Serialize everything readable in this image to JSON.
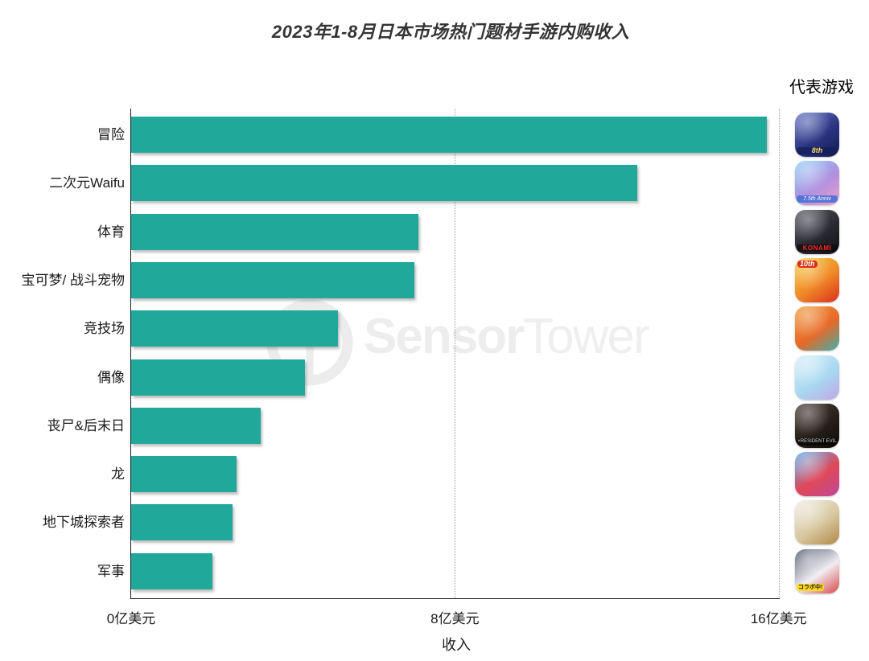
{
  "title": "2023年1-8月日本市场热门题材手游内购收入",
  "watermark": {
    "bold": "Sensor",
    "light": "Tower"
  },
  "right_panel": {
    "header": "代表游戏",
    "games": [
      {
        "category": "冒险",
        "icon": "fate-grand-order-game-icon",
        "colors": [
          "#6a79c8",
          "#2a3580",
          "#141c52"
        ],
        "badge": "8th"
      },
      {
        "category": "二次元Waifu",
        "icon": "uma-musume-game-icon",
        "colors": [
          "#8fd0f8",
          "#b090e0",
          "#f0a0c8"
        ],
        "badge": "7.5th Anniv"
      },
      {
        "category": "体育",
        "icon": "baseball-konami-game-icon",
        "colors": [
          "#5a5a66",
          "#2a2a32",
          "#101014"
        ],
        "badge": "KONAMI"
      },
      {
        "category": "宝可梦/ 战斗宠物",
        "icon": "monster-strike-game-icon",
        "colors": [
          "#f8d040",
          "#f08828",
          "#d83018"
        ],
        "badge": "10th"
      },
      {
        "category": "竞技场",
        "icon": "one-piece-game-icon",
        "colors": [
          "#f0a040",
          "#e86828",
          "#40b0a8"
        ],
        "badge": null
      },
      {
        "category": "偶像",
        "icon": "idol-rhythm-game-icon",
        "colors": [
          "#d8f0fa",
          "#a8d8f0",
          "#c0a8e8"
        ],
        "badge": null
      },
      {
        "category": "丧尸&后末日",
        "icon": "zombie-survival-game-icon",
        "colors": [
          "#4a4038",
          "#28201a",
          "#0c0a08"
        ],
        "badge": "×RESIDENT EVIL"
      },
      {
        "category": "龙",
        "icon": "puzzle-dragons-game-icon",
        "colors": [
          "#58b0f0",
          "#e04858",
          "#c04898"
        ],
        "badge": null
      },
      {
        "category": "地下城探索者",
        "icon": "dungeon-explorer-game-icon",
        "colors": [
          "#f0ece4",
          "#d8c8a0",
          "#b08848"
        ],
        "badge": null
      },
      {
        "category": "军事",
        "icon": "military-collab-game-icon",
        "colors": [
          "#485068",
          "#f0eef2",
          "#d84848"
        ],
        "badge": "コラボ中!"
      }
    ]
  },
  "chart_data": {
    "type": "bar",
    "orientation": "horizontal",
    "title": "2023年1-8月日本市场热门题材手游内购收入",
    "categories": [
      "冒险",
      "二次元Waifu",
      "体育",
      "宝可梦/ 战斗宠物",
      "竞技场",
      "偶像",
      "丧尸&后末日",
      "龙",
      "地下城探索者",
      "军事"
    ],
    "values": [
      15.7,
      12.5,
      7.1,
      7.0,
      5.1,
      4.3,
      3.2,
      2.6,
      2.5,
      2.0
    ],
    "unit": "亿美元",
    "xlabel": "收入",
    "xlim": [
      0,
      16
    ],
    "x_ticks": [
      {
        "value": 0,
        "label": "0亿美元"
      },
      {
        "value": 8,
        "label": "8亿美元"
      },
      {
        "value": 16,
        "label": "16亿美元"
      }
    ],
    "grid": {
      "vertical_at": [
        8,
        16
      ],
      "style": "dotted"
    },
    "bar_color": "#20A89A",
    "legend": "none"
  }
}
